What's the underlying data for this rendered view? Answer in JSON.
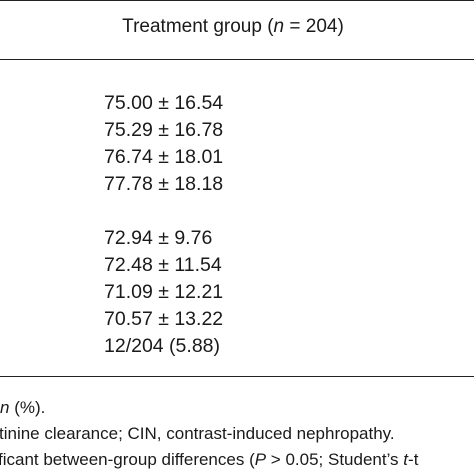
{
  "table": {
    "header": {
      "prefix": "Treatment group (",
      "n_symbol": "n",
      "suffix": " = 204)"
    },
    "rows_group_1": [
      "75.00 ± 16.54",
      "75.29 ± 16.78",
      "76.74 ± 18.01",
      "77.78 ± 18.18"
    ],
    "rows_group_2": [
      "72.94 ± 9.76",
      "72.48 ± 11.54",
      "71.09 ± 12.21",
      "70.57 ± 13.22",
      "12/204 (5.88)"
    ]
  },
  "footnotes": {
    "line1": {
      "italic": "n",
      "rest": " (%)."
    },
    "line2": "tinine clearance; CIN, contrast-induced nephropathy.",
    "line3": {
      "start": "ficant between-group differences (",
      "p_symbol": "P",
      "mid": " > 0.05; Student’s ",
      "t_symbol": "t",
      "end": "-t"
    }
  }
}
